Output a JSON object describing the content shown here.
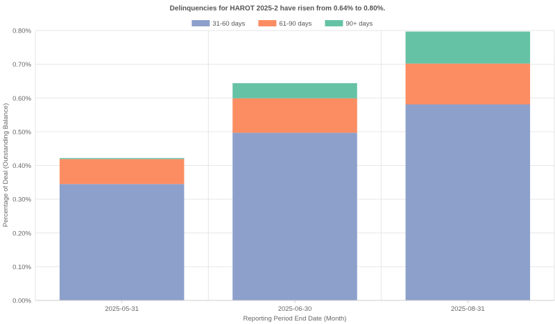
{
  "chart_data": {
    "type": "bar",
    "stacked": true,
    "title": "Delinquencies for HAROT 2025-2 have risen from 0.64% to 0.80%.",
    "xlabel": "Reporting Period End Date (Month)",
    "ylabel": "Percentage of Deal (Outstanding Balance)",
    "categories": [
      "2025-05-31",
      "2025-06-30",
      "2025-08-31"
    ],
    "ylim": [
      0,
      0.8
    ],
    "yticks": [
      0,
      0.1,
      0.2,
      0.3,
      0.4,
      0.5,
      0.6,
      0.7,
      0.8
    ],
    "ytick_labels": [
      "0.00%",
      "0.10%",
      "0.20%",
      "0.30%",
      "0.40%",
      "0.50%",
      "0.60%",
      "0.70%",
      "0.80%"
    ],
    "legend_position": "top-center",
    "grid": true,
    "series": [
      {
        "name": "31-60 days",
        "color": "#8da0cb",
        "values": [
          0.345,
          0.497,
          0.581
        ]
      },
      {
        "name": "61-90 days",
        "color": "#fc8d62",
        "values": [
          0.074,
          0.102,
          0.121
        ]
      },
      {
        "name": "90+ days",
        "color": "#66c2a5",
        "values": [
          0.003,
          0.045,
          0.095
        ]
      }
    ]
  }
}
